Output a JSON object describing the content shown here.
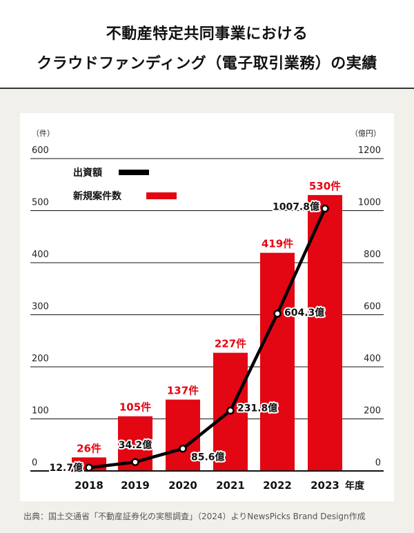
{
  "title": {
    "line1": "不動産特定共同事業における",
    "line2": "クラウドファンディング（電子取引業務）の実績"
  },
  "source": "出典：国土交通省「不動産証券化の実態調査」（2024）よりNewsPicks Brand Design作成",
  "colors": {
    "bar": "#e30613",
    "line": "#000000",
    "background": "#f1f0ea",
    "panel": "#ffffff",
    "grid": "#111111"
  },
  "chart_data": {
    "type": "bar",
    "categories": [
      "2018",
      "2019",
      "2020",
      "2021",
      "2022",
      "2023"
    ],
    "xlabel_suffix": "年度",
    "left_axis": {
      "unit": "（件）",
      "ticks": [
        "600",
        "500",
        "400",
        "300",
        "200",
        "100",
        "0"
      ],
      "ylim": [
        0,
        600
      ]
    },
    "right_axis": {
      "unit": "（億円）",
      "ticks": [
        "1200",
        "1000",
        "800",
        "600",
        "400",
        "200",
        "0"
      ],
      "ylim": [
        0,
        1200
      ]
    },
    "series": [
      {
        "name": "新規案件数",
        "type": "bar",
        "axis": "left",
        "values": [
          26,
          105,
          137,
          227,
          419,
          530
        ],
        "labels": [
          "26件",
          "105件",
          "137件",
          "227件",
          "419件",
          "530件"
        ]
      },
      {
        "name": "出資額",
        "type": "line",
        "axis": "right",
        "values": [
          12.7,
          34.2,
          85.6,
          231.8,
          604.3,
          1007.8
        ],
        "labels": [
          "12.7億",
          "34.2億",
          "85.6億",
          "231.8億",
          "604.3億",
          "1007.8億"
        ]
      }
    ],
    "legend": [
      {
        "label": "出資額",
        "series": "line"
      },
      {
        "label": "新規案件数",
        "series": "bar"
      }
    ],
    "legend_position": "top-left",
    "grid": true
  }
}
